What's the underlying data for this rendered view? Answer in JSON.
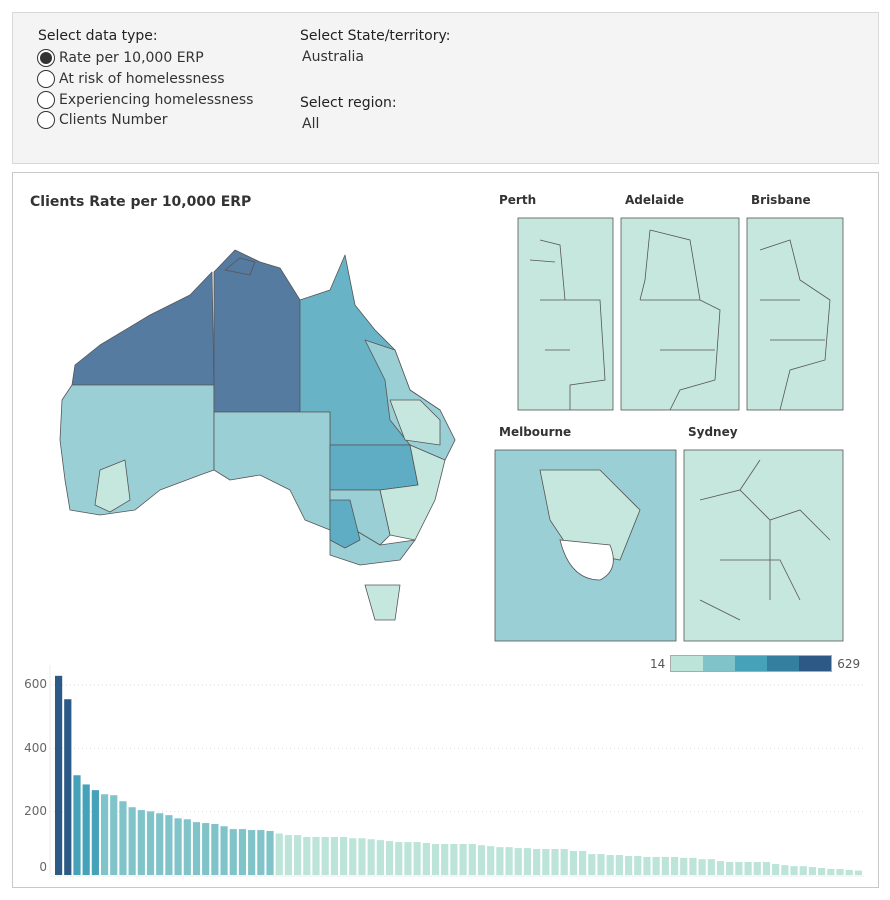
{
  "filters": {
    "data_type_label": "Select data type:",
    "data_type_options": [
      "Rate per 10,000 ERP",
      "At risk of homelessness",
      "Experiencing homelessness",
      "Clients Number"
    ],
    "data_type_selected": 0,
    "state_label": "Select State/territory:",
    "state_value": "Australia",
    "region_label": "Select region:",
    "region_value": "All"
  },
  "map": {
    "title": "Clients Rate per 10,000 ERP",
    "cities": [
      "Perth",
      "Adelaide",
      "Brisbane",
      "Melbourne",
      "Sydney"
    ]
  },
  "legend": {
    "min": "14",
    "max": "629",
    "colors": [
      "#bce4d8",
      "#80c4c9",
      "#45a2b9",
      "#347ea0",
      "#2c5985"
    ]
  },
  "chart_data": {
    "type": "bar",
    "ylim": [
      0,
      660
    ],
    "yticks": [
      "0",
      "200",
      "400",
      "600"
    ],
    "grid": true,
    "values": [
      629,
      555,
      315,
      286,
      268,
      255,
      252,
      233,
      214,
      205,
      201,
      195,
      189,
      179,
      176,
      167,
      164,
      161,
      154,
      145,
      145,
      142,
      142,
      139,
      131,
      126,
      126,
      120,
      120,
      120,
      120,
      120,
      116,
      116,
      113,
      110,
      107,
      104,
      104,
      104,
      101,
      98,
      98,
      98,
      98,
      98,
      94,
      91,
      88,
      88,
      85,
      85,
      82,
      82,
      82,
      82,
      76,
      76,
      66,
      66,
      63,
      63,
      60,
      60,
      57,
      57,
      57,
      57,
      54,
      54,
      50,
      50,
      44,
      41,
      41,
      41,
      41,
      41,
      35,
      31,
      28,
      28,
      25,
      22,
      19,
      19,
      16,
      14
    ]
  }
}
